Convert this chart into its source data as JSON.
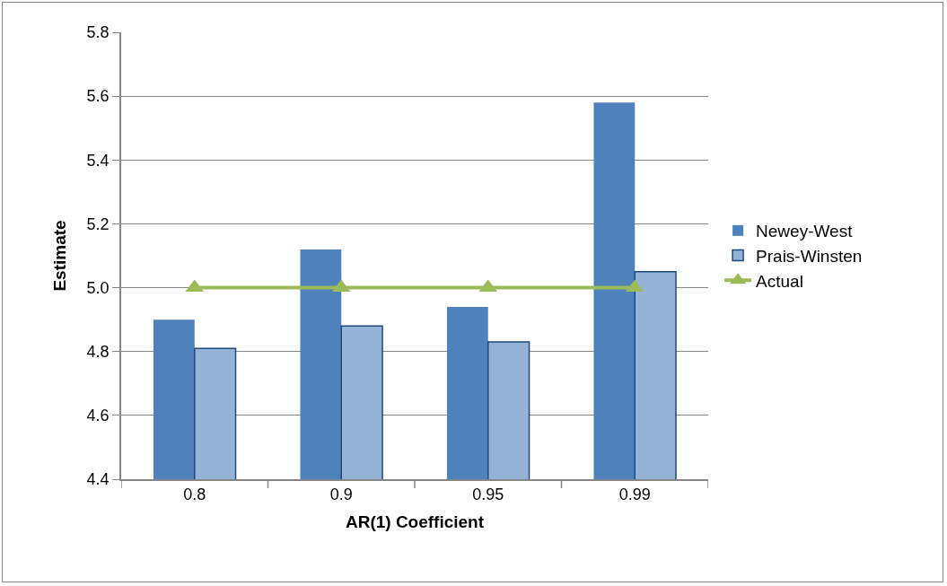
{
  "chart_data": {
    "type": "bar",
    "xlabel": "AR(1) Coefficient",
    "ylabel": "Estimate",
    "categories": [
      "0.8",
      "0.9",
      "0.95",
      "0.99"
    ],
    "series": [
      {
        "name": "Newey-West",
        "color": "#4f81bd",
        "values": [
          4.9,
          5.12,
          4.94,
          5.58
        ]
      },
      {
        "name": "Prais-Winsten",
        "color": "#95b3d7",
        "values": [
          4.81,
          4.88,
          4.83,
          5.05
        ]
      },
      {
        "name": "Actual",
        "type": "line",
        "color": "#9bbb59",
        "values": [
          5.0,
          5.0,
          5.0,
          5.0
        ],
        "marker": "triangle"
      }
    ],
    "ylim": [
      4.4,
      5.8
    ],
    "yticks": [
      4.4,
      4.6,
      4.8,
      {
        "value": 5.0,
        "label": "5.0"
      },
      5.2,
      5.4,
      5.6,
      5.8
    ],
    "grid": "y",
    "legend": "right"
  }
}
